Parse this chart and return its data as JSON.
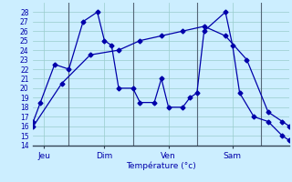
{
  "xlabel": "Température (°c)",
  "xlim": [
    0,
    36
  ],
  "ylim": [
    14,
    29
  ],
  "yticks": [
    14,
    15,
    16,
    17,
    18,
    19,
    20,
    21,
    22,
    23,
    24,
    25,
    26,
    27,
    28
  ],
  "day_labels": [
    "Jeu",
    "Dim",
    "Ven",
    "Sam"
  ],
  "day_positions": [
    1.5,
    10,
    19,
    28
  ],
  "vline_positions": [
    5,
    14,
    23,
    32
  ],
  "bg_color": "#cceeff",
  "grid_color": "#99cccc",
  "line_color": "#0000aa",
  "vline_color": "#556677",
  "series1_x": [
    0,
    1,
    3,
    5,
    7,
    9,
    10,
    11,
    12,
    14,
    15,
    17,
    18,
    19,
    21,
    22,
    23,
    24,
    27,
    28,
    29,
    31,
    33,
    35,
    36
  ],
  "series1_y": [
    16.5,
    18.5,
    22.5,
    22.0,
    27.0,
    28.0,
    25.0,
    24.5,
    20.0,
    20.0,
    18.5,
    18.5,
    21.0,
    18.0,
    18.0,
    19.0,
    19.5,
    26.0,
    28.0,
    24.5,
    19.5,
    17.0,
    16.5,
    15.0,
    14.5
  ],
  "series2_x": [
    0,
    4,
    8,
    12,
    15,
    18,
    21,
    24,
    27,
    30,
    33,
    35,
    36
  ],
  "series2_y": [
    16.0,
    20.5,
    23.5,
    24.0,
    25.0,
    25.5,
    26.0,
    26.5,
    25.5,
    23.0,
    17.5,
    16.5,
    16.0
  ],
  "marker": "D",
  "marker_size": 2.5,
  "line_width": 0.9,
  "xlabel_fontsize": 6.5,
  "tick_fontsize": 5.5,
  "xlabel_color": "#0000aa"
}
